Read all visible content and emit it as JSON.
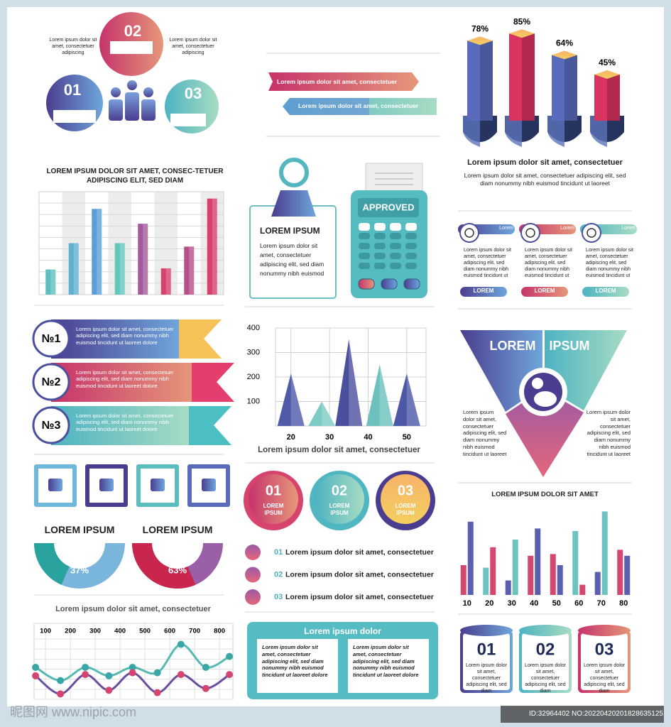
{
  "chart_data": [
    {
      "type": "bar3d",
      "title": "Lorem ipsum dolor sit amet, consectetuer",
      "subtitle": "Lorem ipsum dolor sit amet, consectetuer adipiscing elit, sed diam nonummy nibh euismod tincidunt ut laoreet",
      "values": [
        78,
        85,
        64,
        45
      ],
      "value_labels": [
        "78%",
        "85%",
        "64%",
        "45%"
      ],
      "colors": [
        "#5a6bbd",
        "#d8345f",
        "#5a6bbd",
        "#d8345f"
      ],
      "ylim": [
        0,
        90
      ]
    },
    {
      "type": "bar",
      "title": "LOREM IPSUM DOLOR SIT AMET, CONSEC-TETUER ADIPISCING ELIT, SED DIAM",
      "values": [
        2.2,
        4.5,
        7.5,
        4.5,
        6.2,
        2.3,
        4.2,
        8.4
      ],
      "colors": [
        "#5cc0bf",
        "#5fb0d0",
        "#5a9fd8",
        "#63c6bb",
        "#a65a9e",
        "#d4446e",
        "#b94f89",
        "#d8406e"
      ],
      "ylim": [
        0,
        9
      ]
    },
    {
      "type": "triangle",
      "title": "Lorem ipsum dolor sit amet, consectetuer",
      "x": [
        20,
        28,
        35,
        43,
        50
      ],
      "values": [
        214,
        100,
        354,
        251,
        214
      ],
      "colors": [
        "#4f5aa8",
        "#7ccbc4",
        "#4a4f9e",
        "#6cc1bf",
        "#4d58a6"
      ],
      "xlim": [
        16,
        55
      ],
      "ylim": [
        0,
        400
      ],
      "xticks": [
        20,
        30,
        40,
        50
      ],
      "yticks": [
        100,
        200,
        300,
        400
      ],
      "grid": true
    },
    {
      "type": "line",
      "title": "Lorem ipsum dolor sit amet, consectetuer",
      "x": [
        60,
        160,
        260,
        355,
        450,
        550,
        645,
        745,
        840
      ],
      "series": [
        {
          "color": "#56b9b2",
          "values": [
            5.3,
            3.1,
            5.3,
            3.9,
            5.3,
            4.4,
            9.1,
            5.3,
            7.1
          ]
        },
        {
          "color": "#6a4f9e",
          "values": [
            3.9,
            0.9,
            4.1,
            1.5,
            4.4,
            1.1,
            4.1,
            1.8,
            4.1
          ]
        }
      ],
      "point_colors": [
        "#3aa6a6",
        "#d4456f"
      ],
      "xlim": [
        54,
        854
      ],
      "ylim": [
        0,
        10
      ],
      "xticks": [
        100,
        200,
        300,
        400,
        500,
        600,
        700,
        800
      ]
    },
    {
      "type": "grouped_bar",
      "title": "LOREM IPSUM DOLOR SIT AMET",
      "categories": [
        10,
        20,
        30,
        40,
        50,
        60,
        70,
        80
      ],
      "series": [
        {
          "values": [
            3.5,
            3.2,
            1.7,
            4.6,
            4.8,
            7.5,
            2.7,
            5.3
          ],
          "colors": [
            "#d4476f",
            "#6cc3c0",
            "#5a5fb0",
            "#d4476f",
            "#d4476f",
            "#6cc3c0",
            "#5a5fb0",
            "#d4476f"
          ]
        },
        {
          "values": [
            8.6,
            5.6,
            6.5,
            7.8,
            3.5,
            1.2,
            9.8,
            4.6
          ],
          "colors": [
            "#5a5fb0",
            "#d4476f",
            "#6cc3c0",
            "#5a5fb0",
            "#5a5fb0",
            "#d4476f",
            "#6cc3c0",
            "#5a5fb0"
          ]
        }
      ],
      "ylim": [
        0,
        10
      ]
    },
    {
      "type": "gauge",
      "title": "LOREM IPSUM",
      "value": 37,
      "value_label": "37%",
      "color": "#2aa39f",
      "track_color": "#7ab6dc"
    },
    {
      "type": "gauge",
      "title": "LOREM IPSUM",
      "value": 63,
      "value_label": "63%",
      "color": "#c8264d",
      "track_color": "#9b5fa8"
    }
  ],
  "cycle": {
    "left_text": "Lorem ipsum dolor sit amet, consectetuer adipiscing",
    "right_text": "Lorem ipsum dolor sit amet, consectetuer adipiscing",
    "numbers": [
      "01",
      "02",
      "03"
    ]
  },
  "ribbons": [
    "Lorem ipsum dolor sit amet, consectetuer",
    "Lorem ipsum dolor sit amet, consectetuer"
  ],
  "clipboard": {
    "title": "LOREM IPSUM",
    "text": "Lorem ipsum dolor sit amet, consectetuer adipiscing elit, sed diam nonummy nibh euismod"
  },
  "terminal": {
    "label": "APPROVED"
  },
  "timers": [
    {
      "tag": "Lorem",
      "text": "Lorem ipsum dolor sit amet, consectetuer adipiscing elit, sed diam nonummy nibh euismod tincidunt ut",
      "button": "LOREM"
    },
    {
      "tag": "Lorem",
      "text": "Lorem ipsum dolor sit amet, consectetuer adipiscing elit, sed diam nonummy nibh euismod tincidunt ut",
      "button": "LOREM"
    },
    {
      "tag": "Lorem",
      "text": "Lorem ipsum dolor sit amet, consectetuer adipiscing elit, sed diam nonummy nibh euismod tincidunt ut",
      "button": "LOREM"
    }
  ],
  "numbered": [
    {
      "label": "№1",
      "text": "Lorem ipsum dolor sit amet, consectetuer adipiscing elit, sed diam nonummy nibh euismod tincidunt ut laoreet dolore"
    },
    {
      "label": "№2",
      "text": "Lorem ipsum dolor sit amet, consectetuer adipiscing elit, sed diam nonummy nibh euismod tincidunt ut laoreet dolore"
    },
    {
      "label": "№3",
      "text": "Lorem ipsum dolor sit amet, consectetuer adipiscing elit, sed diam nonummy nibh euismod tincidunt ut laoreet dolore"
    }
  ],
  "funnel": {
    "title_left": "LOREM",
    "title_right": "IPSUM",
    "left_text": "Lorem ipsum dolor sit amet, consectetuer adipiscing elit, sed diam nonummy nibh euismod tincidunt ut laoreet",
    "right_text": "Lorem ipsum dolor sit amet, consectetuer adipiscing elit, sed diam nonummy nibh euismod tincidunt ut laoreet"
  },
  "circles": [
    {
      "number": "01",
      "label": "LOREM IPSUM"
    },
    {
      "number": "02",
      "label": "LOREM IPSUM"
    },
    {
      "number": "03",
      "label": "LOREM IPSUM"
    }
  ],
  "list": [
    {
      "number": "01",
      "text": "Lorem ipsum dolor sit amet, consectetuer"
    },
    {
      "number": "02",
      "text": "Lorem ipsum dolor sit amet, consectetuer"
    },
    {
      "number": "03",
      "text": "Lorem ipsum dolor sit amet, consectetuer"
    }
  ],
  "box": {
    "title": "Lorem ipsum dolor",
    "columns": [
      "Lorem ipsum dolor sit amet, consectetuer adipiscing elit, sed diam nonummy nibh euismod tincidunt ut laoreet dolore",
      "Lorem ipsum dolor sit amet, consectetuer adipiscing elit, sed diam nonummy nibh euismod tincidunt ut laoreet dolore"
    ]
  },
  "cylinders": [
    {
      "number": "01",
      "text": "Lorem ipsum dolor sit amet, consectetuer adipiscing elit, sed diam"
    },
    {
      "number": "02",
      "text": "Lorem ipsum dolor sit amet, consectetuer adipiscing elit, sed diam"
    },
    {
      "number": "03",
      "text": "Lorem ipsum dolor sit amet, consectetuer adipiscing elit, sed diam"
    }
  ],
  "watermark": {
    "left": "昵图网 www.nipic.com",
    "right": "ID:32964402 NO:20220420201828635125"
  }
}
